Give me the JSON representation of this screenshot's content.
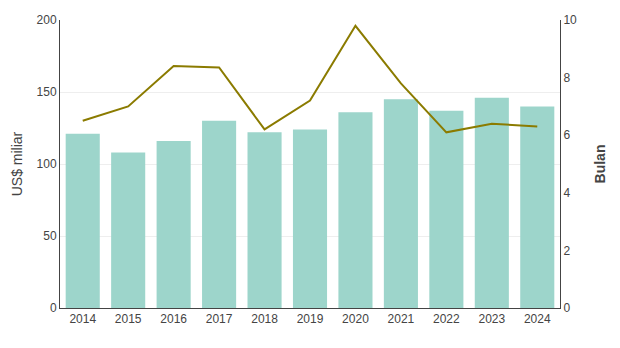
{
  "chart_data": {
    "type": "bar",
    "x": [
      2014,
      2015,
      2016,
      2017,
      2018,
      2019,
      2020,
      2021,
      2022,
      2023,
      2024
    ],
    "series": [
      {
        "type": "bar",
        "color": "#9dd5cb",
        "values": [
          121,
          108,
          116,
          130,
          122,
          124,
          136,
          145,
          137,
          146,
          140
        ]
      },
      {
        "type": "line",
        "color": "#8B7B00",
        "axis": "y2",
        "values": [
          6.5,
          7.0,
          8.4,
          8.35,
          6.2,
          7.2,
          9.8,
          7.8,
          6.1,
          6.4,
          6.3
        ]
      }
    ],
    "ylabel": "US$ miliar",
    "y2label": "Bulan",
    "xlim": [
      2013.5,
      2024.5
    ],
    "xticks": [
      2014,
      2015,
      2016,
      2017,
      2018,
      2019,
      2020,
      2021,
      2022,
      2023,
      2024
    ],
    "ylim": [
      0,
      200
    ],
    "yticks": [
      0,
      50,
      100,
      150,
      200
    ],
    "y2lim": [
      0,
      10
    ],
    "y2ticks": [
      0,
      2,
      4,
      6,
      8,
      10
    ],
    "grid": true
  }
}
